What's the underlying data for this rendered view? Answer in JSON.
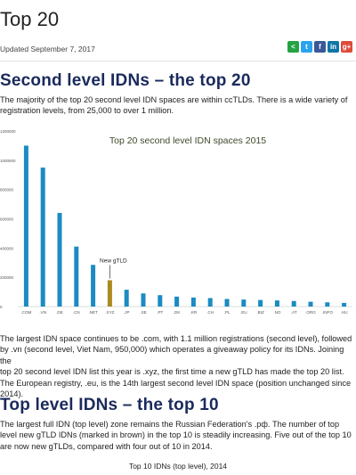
{
  "page": {
    "title": "Top 20",
    "updated": "Updated September 7, 2017",
    "share": [
      {
        "icon": "share-icon",
        "glyph": "<",
        "color": "#25a244"
      },
      {
        "icon": "twitter-icon",
        "glyph": "t",
        "color": "#2aa3ef"
      },
      {
        "icon": "facebook-icon",
        "glyph": "f",
        "color": "#3b5998"
      },
      {
        "icon": "linkedin-icon",
        "glyph": "in",
        "color": "#0e76a8"
      },
      {
        "icon": "google-plus-icon",
        "glyph": "g+",
        "color": "#dd4b39"
      }
    ]
  },
  "section1": {
    "heading": "Second level IDNs – the top 20",
    "intro_line1": "The majority of the top 20 second level IDN spaces are within ccTLDs.  There is a wide variety of",
    "intro_line2": "registration levels, from 25,000 to over 1 million."
  },
  "chart_data": {
    "type": "bar",
    "title": "Top 20 second level IDN spaces 2015",
    "categories": [
      ".COM",
      ".VN",
      ".DE",
      ".CN",
      ".NET",
      ".XYZ",
      ".JP",
      ".SE",
      ".PT",
      ".DK",
      ".KR",
      ".CH",
      ".PL",
      ".EU",
      ".BIZ",
      ".NO",
      ".AT",
      ".ORG",
      ".INFO",
      ".HU"
    ],
    "values": [
      1100000,
      950000,
      640000,
      410000,
      285000,
      180000,
      115000,
      90000,
      78000,
      68000,
      62000,
      58000,
      52000,
      48000,
      45000,
      42000,
      38000,
      33000,
      29000,
      25000
    ],
    "ylim": [
      0,
      1200000
    ],
    "yticks": [
      "0",
      "200000",
      "400000",
      "600000",
      "800000",
      "1000000",
      "1200000"
    ],
    "colors": {
      "default": "#1b8bc2",
      "gtld": "#a98b1f"
    },
    "highlight_index": 5,
    "annotation": "New gTLD"
  },
  "section1_body": {
    "line1": "The largest IDN space continues to be .com, with 1.1 million registrations (second level), followed",
    "line2": "by .vn (second level, Viet Nam, 950,000) which operates a giveaway policy for its IDNs.  Joining the",
    "line3": "top 20 second level IDN list this year is .xyz, the first time a new gTLD has made the top 20 list.",
    "line4": "The European registry, .eu, is the 14th largest second level IDN space (position unchanged since",
    "line5": "2014)."
  },
  "section2": {
    "heading": "Top level IDNs – the top 10",
    "line1": "The largest full IDN (top level) zone remains the Russian Federation's .рф.  The number of top",
    "line2": "level new gTLD IDNs (marked in brown) in the top 10 is steadily increasing. Five out of the top 10",
    "line3": "are now new gTLDs, compared with four out of 10 in 2014.",
    "caption": "Top 10 IDNs (top level), 2014"
  }
}
